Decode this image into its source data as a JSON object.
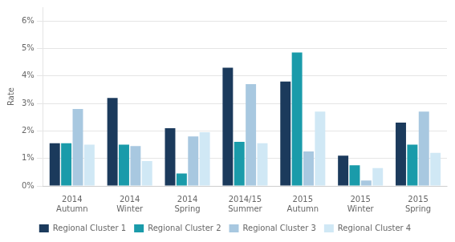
{
  "chart_data": {
    "type": "bar",
    "categories": [
      "2014\nAutumn",
      "2014\nWinter",
      "2014\nSpring",
      "2014/15\nSummer",
      "2015\nAutumn",
      "2015\nWinter",
      "2015\nSpring"
    ],
    "series": [
      {
        "name": "Regional Cluster 1",
        "color": "#1B3A5C",
        "values": [
          1.55,
          3.2,
          2.1,
          4.3,
          3.8,
          1.1,
          2.3
        ]
      },
      {
        "name": "Regional Cluster 2",
        "color": "#1A9BAA",
        "values": [
          1.55,
          1.5,
          0.45,
          1.6,
          4.85,
          0.75,
          1.5
        ]
      },
      {
        "name": "Regional Cluster 3",
        "color": "#A8C8E0",
        "values": [
          2.8,
          1.45,
          1.8,
          3.7,
          1.25,
          0.2,
          2.7
        ]
      },
      {
        "name": "Regional Cluster 4",
        "color": "#D0E8F5",
        "values": [
          1.5,
          0.9,
          1.95,
          1.55,
          2.7,
          0.65,
          1.2
        ]
      }
    ],
    "ylabel": "Rate",
    "ylim": [
      0,
      6.5
    ],
    "yticks": [
      {
        "value": 0,
        "label": "0%"
      },
      {
        "value": 1,
        "label": "1%"
      },
      {
        "value": 2,
        "label": "2%"
      },
      {
        "value": 3,
        "label": "3%"
      },
      {
        "value": 4,
        "label": "4%"
      },
      {
        "value": 5,
        "label": "5%"
      },
      {
        "value": 6,
        "label": "6%"
      }
    ],
    "grid": true,
    "legend": "bottom"
  }
}
